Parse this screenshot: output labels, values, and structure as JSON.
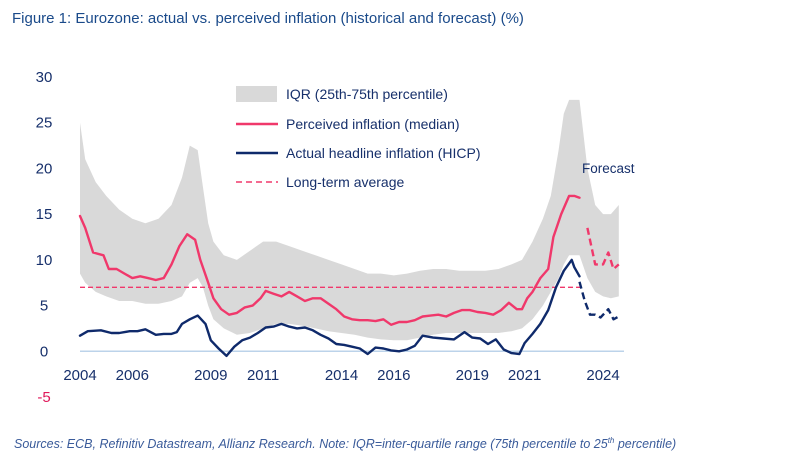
{
  "title": "Figure 1: Eurozone: actual vs. perceived inflation (historical and forecast) (%)",
  "source_text": "Sources: ECB, Refinitiv Datastream, Allianz Research. Note: IQR=inter-quartile range (75th percentile to 25",
  "source_sup": "th",
  "source_tail": " percentile)",
  "colors": {
    "iqr": "#d9d9d9",
    "perceived": "#f0386b",
    "hicp": "#0f2a6b",
    "average": "#f0386b",
    "zero_line": "#bcd3ea",
    "axis_text": "#17306b",
    "negative_tick": "#e0195a"
  },
  "chart_data": {
    "type": "line",
    "title": "Figure 1: Eurozone: actual vs. perceived inflation (historical and forecast) (%)",
    "xlabel": "",
    "ylabel": "",
    "xlim": [
      2004,
      2024.8
    ],
    "ylim": [
      -5,
      30
    ],
    "x_ticks": [
      "2004",
      "2006",
      "2009",
      "2011",
      "2014",
      "2016",
      "2019",
      "2021",
      "2024"
    ],
    "x_tick_values": [
      2004,
      2006,
      2009,
      2011,
      2014,
      2016,
      2019,
      2021,
      2024
    ],
    "y_ticks": [
      "-5",
      "0",
      "5",
      "10",
      "15",
      "20",
      "25",
      "30"
    ],
    "y_tick_values": [
      -5,
      0,
      5,
      10,
      15,
      20,
      25,
      30
    ],
    "legend_position": "top-center",
    "legend": [
      "IQR (25th-75th percentile)",
      "Perceived inflation (median)",
      "Actual headline inflation (HICP)",
      "Long-term average"
    ],
    "annotation": "Forecast",
    "forecast_start": 2023.4,
    "iqr": {
      "name": "IQR (25th-75th percentile)",
      "x": [
        2004.0,
        2004.2,
        2004.6,
        2005.0,
        2005.5,
        2006.0,
        2006.5,
        2007.0,
        2007.5,
        2007.9,
        2008.2,
        2008.5,
        2008.7,
        2008.9,
        2009.1,
        2009.5,
        2010.0,
        2010.5,
        2011.0,
        2011.5,
        2012.0,
        2012.5,
        2013.0,
        2013.5,
        2014.0,
        2014.5,
        2015.0,
        2015.5,
        2016.0,
        2016.5,
        2017.0,
        2017.5,
        2018.0,
        2018.5,
        2019.0,
        2019.5,
        2020.0,
        2020.5,
        2020.9,
        2021.3,
        2021.7,
        2022.0,
        2022.3,
        2022.5,
        2022.7,
        2022.9,
        2023.1,
        2023.4,
        2023.7,
        2024.0,
        2024.3,
        2024.6
      ],
      "high": [
        25,
        21,
        18.5,
        17,
        15.5,
        14.5,
        14,
        14.5,
        16,
        19,
        22.5,
        22,
        18,
        14,
        12,
        10.5,
        10,
        11,
        12,
        12,
        11.5,
        11,
        10.5,
        10,
        9.5,
        9,
        8.5,
        8.5,
        8.3,
        8.5,
        8.8,
        9,
        9,
        8.8,
        8.8,
        8.8,
        9,
        9.5,
        10,
        12,
        14.5,
        17,
        22,
        26,
        27.5,
        27.5,
        27.5,
        20,
        16,
        15,
        15,
        16
      ],
      "low": [
        8.5,
        7.5,
        6.5,
        6,
        5.5,
        5.5,
        5.2,
        5.2,
        5.5,
        6,
        7.5,
        8,
        7,
        5,
        3.5,
        2.5,
        1.8,
        2,
        2.5,
        3,
        3,
        2.8,
        2.5,
        2.2,
        2,
        1.8,
        1.5,
        1.3,
        1.2,
        1.2,
        1.5,
        1.8,
        2,
        2,
        2,
        2,
        2,
        2.2,
        2.5,
        3.5,
        5,
        6.5,
        8,
        9.5,
        10.5,
        10.5,
        10.5,
        8,
        6.5,
        6,
        5.8,
        6
      ]
    },
    "series": [
      {
        "name": "Perceived inflation (median)",
        "x": [
          2004.0,
          2004.2,
          2004.5,
          2004.9,
          2005.1,
          2005.4,
          2005.7,
          2006.0,
          2006.3,
          2006.6,
          2006.9,
          2007.2,
          2007.5,
          2007.8,
          2008.1,
          2008.4,
          2008.6,
          2008.9,
          2009.1,
          2009.4,
          2009.7,
          2010.0,
          2010.3,
          2010.6,
          2010.9,
          2011.1,
          2011.4,
          2011.7,
          2012.0,
          2012.3,
          2012.6,
          2012.9,
          2013.2,
          2013.5,
          2013.8,
          2014.1,
          2014.4,
          2014.7,
          2015.0,
          2015.3,
          2015.6,
          2015.9,
          2016.2,
          2016.5,
          2016.8,
          2017.1,
          2017.4,
          2017.7,
          2018.0,
          2018.3,
          2018.6,
          2018.9,
          2019.2,
          2019.5,
          2019.8,
          2020.1,
          2020.4,
          2020.7,
          2020.9,
          2021.1,
          2021.3,
          2021.6,
          2021.9,
          2022.1,
          2022.4,
          2022.7,
          2022.9,
          2023.1
        ],
        "values": [
          14.8,
          13.5,
          10.8,
          10.5,
          9.0,
          9.0,
          8.5,
          8.0,
          8.2,
          8.0,
          7.8,
          8.0,
          9.5,
          11.5,
          12.8,
          12.2,
          10.0,
          7.5,
          5.8,
          4.6,
          4.0,
          4.2,
          4.8,
          5.0,
          5.8,
          6.6,
          6.3,
          6.0,
          6.5,
          6.0,
          5.5,
          5.8,
          5.8,
          5.2,
          4.6,
          3.8,
          3.5,
          3.4,
          3.4,
          3.3,
          3.5,
          2.9,
          3.2,
          3.2,
          3.4,
          3.8,
          3.9,
          4.0,
          3.8,
          4.2,
          4.5,
          4.5,
          4.3,
          4.2,
          4.0,
          4.5,
          5.3,
          4.6,
          4.6,
          5.8,
          6.5,
          8.0,
          9.0,
          12.5,
          15.0,
          17.0,
          17.0,
          16.8
        ]
      },
      {
        "name": "Actual headline inflation (HICP)",
        "x": [
          2004.0,
          2004.3,
          2004.8,
          2005.2,
          2005.5,
          2005.9,
          2006.2,
          2006.5,
          2006.9,
          2007.2,
          2007.5,
          2007.7,
          2007.9,
          2008.2,
          2008.5,
          2008.8,
          2009.0,
          2009.3,
          2009.6,
          2009.9,
          2010.2,
          2010.5,
          2010.8,
          2011.1,
          2011.4,
          2011.7,
          2012.0,
          2012.3,
          2012.6,
          2012.9,
          2013.2,
          2013.5,
          2013.8,
          2014.1,
          2014.4,
          2014.7,
          2015.0,
          2015.3,
          2015.6,
          2015.9,
          2016.2,
          2016.5,
          2016.8,
          2017.1,
          2017.5,
          2017.9,
          2018.3,
          2018.7,
          2019.0,
          2019.3,
          2019.6,
          2019.9,
          2020.2,
          2020.5,
          2020.8,
          2021.0,
          2021.3,
          2021.6,
          2021.9,
          2022.2,
          2022.5,
          2022.8,
          2022.9,
          2023.1
        ],
        "values": [
          1.7,
          2.2,
          2.3,
          2.0,
          2.0,
          2.2,
          2.2,
          2.4,
          1.8,
          1.9,
          1.9,
          2.1,
          3.0,
          3.5,
          3.9,
          3.0,
          1.2,
          0.3,
          -0.5,
          0.5,
          1.2,
          1.5,
          2.0,
          2.6,
          2.7,
          3.0,
          2.7,
          2.5,
          2.6,
          2.3,
          1.8,
          1.4,
          0.8,
          0.7,
          0.5,
          0.3,
          -0.3,
          0.4,
          0.3,
          0.1,
          0.0,
          0.2,
          0.6,
          1.7,
          1.5,
          1.4,
          1.3,
          2.1,
          1.5,
          1.4,
          0.8,
          1.3,
          0.2,
          -0.2,
          -0.3,
          0.9,
          1.9,
          3.0,
          4.5,
          7.0,
          8.8,
          10.0,
          9.2,
          8.2
        ]
      }
    ],
    "forecast_series": [
      {
        "name": "Perceived inflation (median)",
        "x": [
          2023.4,
          2023.7,
          2024.0,
          2024.2,
          2024.4,
          2024.6
        ],
        "values": [
          13.5,
          9.5,
          9.5,
          10.8,
          9.0,
          9.5
        ]
      },
      {
        "name": "Actual headline inflation (HICP)",
        "x": [
          2023.1,
          2023.3,
          2023.5,
          2023.7,
          2023.9,
          2024.2,
          2024.4,
          2024.6
        ],
        "values": [
          7.6,
          5.5,
          4.0,
          4.0,
          3.7,
          4.6,
          3.5,
          3.8
        ]
      }
    ],
    "long_term_average": {
      "name": "Long-term average",
      "value": 7.0
    }
  }
}
